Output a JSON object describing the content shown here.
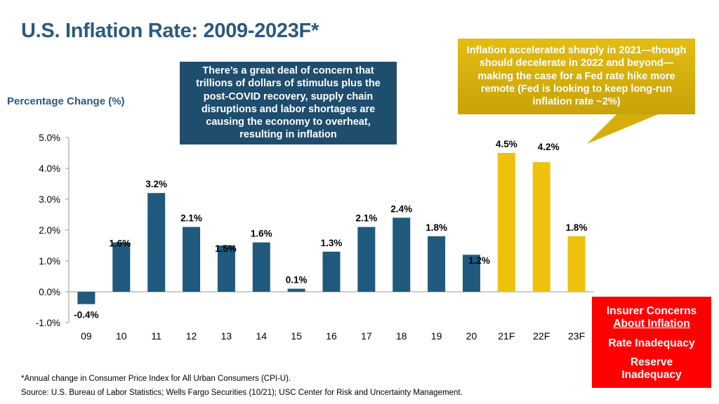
{
  "title": "U.S. Inflation Rate:  2009-2023F*",
  "ylabel": "Percentage Change (%)",
  "callout_blue": "There’s a great deal of concern that trillions of dollars of stimulus plus the post-COVID recovery, supply chain disruptions and labor shortages are causing the economy to overheat, resulting in inflation",
  "callout_yellow": "Inflation accelerated sharply in 2021—though should decelerate in 2022 and beyond—making the case for a Fed rate hike more remote (Fed is looking to keep long-run inflation rate ~2%)",
  "red_box": {
    "title": "Insurer Concerns",
    "subtitle": "About Inflation",
    "item1": "Rate Inadequacy",
    "item2": "Reserve Inadequacy"
  },
  "footnote": "*Annual change in Consumer Price Index for All Urban Consumers (CPI-U).",
  "source": "Source: U.S. Bureau of Labor Statistics; Wells Fargo Securities (10/21); USC Center for Risk and Uncertainty Management.",
  "colors": {
    "actual": "#1f5a7e",
    "forecast": "#eec20c",
    "title": "#2a5a80",
    "callout_blue": "#1e4d6e",
    "red": "#ff0000"
  },
  "chart_data": {
    "type": "bar",
    "title": "U.S. Inflation Rate:  2009-2023F*",
    "ylabel": "Percentage Change (%)",
    "xlabel": "",
    "ylim": [
      -1.0,
      5.0
    ],
    "yticks": [
      -1.0,
      0.0,
      1.0,
      2.0,
      3.0,
      4.0,
      5.0
    ],
    "ytick_labels": [
      "-1.0%",
      "0.0%",
      "1.0%",
      "2.0%",
      "3.0%",
      "4.0%",
      "5.0%"
    ],
    "categories": [
      "09",
      "10",
      "11",
      "12",
      "13",
      "14",
      "15",
      "16",
      "17",
      "18",
      "19",
      "20",
      "21F",
      "22F",
      "23F"
    ],
    "values": [
      -0.4,
      1.6,
      3.2,
      2.1,
      1.5,
      1.6,
      0.1,
      1.3,
      2.1,
      2.4,
      1.8,
      1.2,
      4.5,
      4.2,
      1.8
    ],
    "labels": [
      "-0.4%",
      "1.6%",
      "3.2%",
      "2.1%",
      "1.5%",
      "1.6%",
      "0.1%",
      "1.3%",
      "2.1%",
      "2.4%",
      "1.8%",
      "1.2%",
      "4.5%",
      "4.2%",
      "1.8%"
    ],
    "forecast": [
      false,
      false,
      false,
      false,
      false,
      false,
      false,
      false,
      false,
      false,
      false,
      false,
      true,
      true,
      true
    ],
    "grid": false
  }
}
